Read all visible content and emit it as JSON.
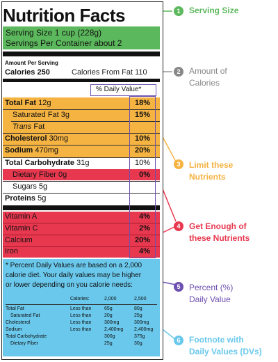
{
  "label": {
    "title": "Nutrition Facts",
    "serving_size": "Serving Size 1 cup (228g)",
    "servings_per_container": "Servings Per Container about 2",
    "amount_per_serving": "Amount Per Serving",
    "calories": "Calories 250",
    "calories_from_fat": "Calories From Fat 110",
    "dv_header": "% Daily Value*",
    "nutrients": [
      {
        "name": "Total Fat",
        "amount": "12g",
        "dv": "18%"
      },
      {
        "name": "Saturated Fat",
        "amount": "3g",
        "dv": "15%"
      },
      {
        "name": "Trans",
        "name_suffix": "Fat"
      },
      {
        "name": "Cholesterol",
        "amount": "30mg",
        "dv": "10%"
      },
      {
        "name": "Sodium",
        "amount": "470mg",
        "dv": "20%"
      },
      {
        "name": "Total Carbohydrate",
        "amount": "31g",
        "dv": "10%"
      },
      {
        "name": "Dietary Fiber",
        "amount": "0g",
        "dv": "0%"
      },
      {
        "name": "Sugars",
        "amount": "5g"
      },
      {
        "name": "Proteins",
        "amount": "5g"
      }
    ],
    "vitamins": [
      {
        "name": "Vitamin A",
        "dv": "4%"
      },
      {
        "name": "Vitamin C",
        "dv": "2%"
      },
      {
        "name": "Calcium",
        "dv": "20%"
      },
      {
        "name": "Iron",
        "dv": "4%"
      }
    ],
    "footnote": {
      "lines": [
        "* Percent Daily Values are based on a 2,000",
        "calorie diet. Your daily values may be higher",
        "or lower depending on you calorie needs:"
      ],
      "table": {
        "header": [
          "Calories:",
          "2,000",
          "2,500"
        ],
        "rows": [
          [
            "Total Fat",
            "Less than",
            "65g",
            "80g"
          ],
          [
            "Saturated Fat",
            "Less than",
            "20g",
            "25g"
          ],
          [
            "Cholesterol",
            "Less than",
            "300mg",
            "300mg"
          ],
          [
            "Sodium",
            "Less than",
            "2,400mg",
            "2,400mg"
          ],
          [
            "Total Carbohydrate",
            "",
            "300g",
            "375g"
          ],
          [
            "Dietary Fiber",
            "",
            "25g",
            "30g"
          ]
        ]
      }
    }
  },
  "callouts": [
    {
      "number": "1",
      "lines": [
        "Serving Size"
      ],
      "color": "#5cb85c"
    },
    {
      "number": "2",
      "lines": [
        "Amount of",
        "Calories"
      ],
      "color": "#888888",
      "text_color": "#888888"
    },
    {
      "number": "3",
      "lines": [
        "Limit these",
        "Nutrients"
      ],
      "color": "#f5b342"
    },
    {
      "number": "4",
      "lines": [
        "Get Enough of",
        "these Nutrients"
      ],
      "color": "#e8384f"
    },
    {
      "number": "5",
      "lines": [
        "Percent (%)",
        "Daily Value"
      ],
      "color": "#6d4fb0"
    },
    {
      "number": "6",
      "lines": [
        "Footnote with",
        "Daily Values (DVs)"
      ],
      "color": "#6ac8ec"
    }
  ]
}
